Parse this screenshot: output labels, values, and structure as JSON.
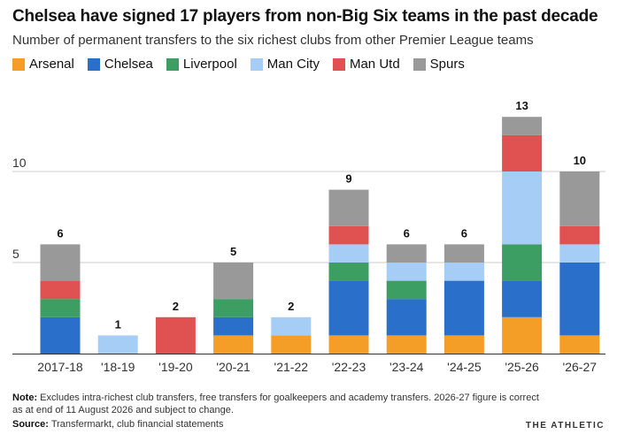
{
  "header": {
    "title": "Chelsea have signed 17 players from non-Big Six teams in the past decade",
    "subtitle": "Number of permanent transfers to the six richest clubs from other Premier League teams"
  },
  "footer": {
    "note_label": "Note:",
    "note_text": "Excludes intra-richest club transfers, free transfers for goalkeepers and academy transfers. 2026-27 figure is correct as at end of 11 August 2026 and subject to change.",
    "source_label": "Source:",
    "source_text": "Transfermarkt, club financial statements",
    "brand": "THE ATHLETIC"
  },
  "chart_data": {
    "type": "bar",
    "stacked": true,
    "categories": [
      "2017-18",
      "'18-19",
      "'19-20",
      "'20-21",
      "'21-22",
      "'22-23",
      "'23-24",
      "'24-25",
      "'25-26",
      "'26-27"
    ],
    "totals": [
      6,
      1,
      2,
      5,
      2,
      9,
      6,
      6,
      13,
      10
    ],
    "series": [
      {
        "name": "Arsenal",
        "color": "#F59E27",
        "values": [
          0,
          0,
          0,
          1,
          1,
          1,
          1,
          1,
          2,
          1
        ]
      },
      {
        "name": "Chelsea",
        "color": "#2A6FC9",
        "values": [
          2,
          0,
          0,
          1,
          0,
          3,
          2,
          3,
          2,
          4
        ]
      },
      {
        "name": "Liverpool",
        "color": "#3C9E63",
        "values": [
          1,
          0,
          0,
          1,
          0,
          1,
          1,
          0,
          2,
          0
        ]
      },
      {
        "name": "Man City",
        "color": "#A6CDF5",
        "values": [
          0,
          1,
          0,
          0,
          1,
          1,
          1,
          1,
          4,
          1
        ]
      },
      {
        "name": "Man Utd",
        "color": "#E05152",
        "values": [
          1,
          0,
          2,
          0,
          0,
          1,
          0,
          0,
          2,
          1
        ]
      },
      {
        "name": "Spurs",
        "color": "#999999",
        "values": [
          2,
          0,
          0,
          2,
          0,
          2,
          1,
          1,
          1,
          3
        ]
      }
    ],
    "y_ticks": [
      5,
      10
    ],
    "ylim": [
      0,
      14
    ],
    "xlabel": "",
    "ylabel": "",
    "grid": true,
    "legend_position": "top-left"
  }
}
